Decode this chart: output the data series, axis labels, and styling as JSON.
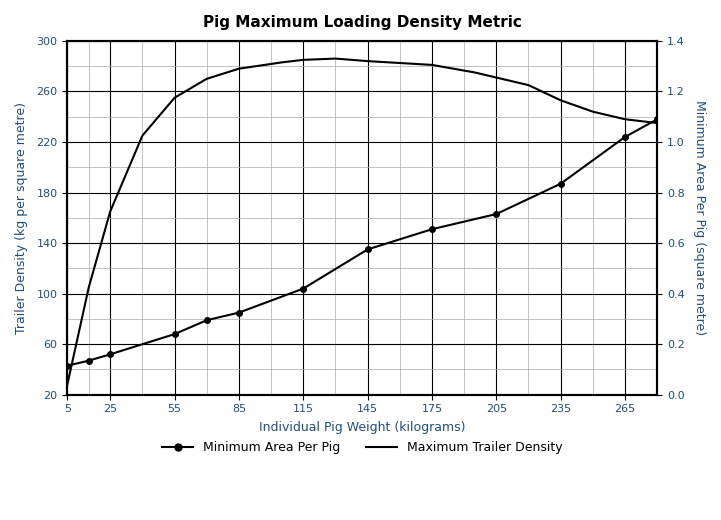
{
  "title": "Pig Maximum Loading Density Metric",
  "xlabel": "Individual Pig Weight (kilograms)",
  "ylabel_left": "Trailer Density (kg per square metre)",
  "ylabel_right": "Minimum Area Per Pig (square metre)",
  "xticks": [
    5,
    25,
    55,
    85,
    115,
    145,
    175,
    205,
    235,
    265
  ],
  "xlim": [
    5,
    280
  ],
  "ylim_left": [
    20,
    300
  ],
  "ylim_right": [
    0,
    1.4
  ],
  "yticks_left": [
    20,
    60,
    100,
    140,
    180,
    220,
    260,
    300
  ],
  "yticks_right": [
    0,
    0.2,
    0.4,
    0.6,
    0.8,
    1.0,
    1.2,
    1.4
  ],
  "area_per_pig_x": [
    5,
    15,
    25,
    55,
    70,
    85,
    115,
    145,
    175,
    205,
    235,
    265,
    280
  ],
  "area_per_pig_y": [
    0.115,
    0.135,
    0.16,
    0.24,
    0.295,
    0.325,
    0.42,
    0.575,
    0.655,
    0.715,
    0.835,
    1.02,
    1.09
  ],
  "trailer_density_x": [
    5,
    15,
    25,
    40,
    55,
    70,
    85,
    105,
    115,
    130,
    145,
    155,
    175,
    195,
    205,
    220,
    235,
    250,
    265,
    280
  ],
  "trailer_density_y": [
    28,
    105,
    165,
    225,
    255,
    270,
    278,
    283,
    285,
    286,
    284,
    283,
    281,
    275,
    271,
    265,
    253,
    244,
    238,
    235
  ],
  "line_color": "#000000",
  "label_color": "#1F4E79",
  "tick_color": "#1F4E79",
  "title_color": "#000000",
  "background_color": "#ffffff",
  "grid_dark_color": "#000000",
  "grid_light_color": "#aaaaaa",
  "title_fontsize": 11,
  "axis_label_fontsize": 9,
  "tick_fontsize": 8
}
